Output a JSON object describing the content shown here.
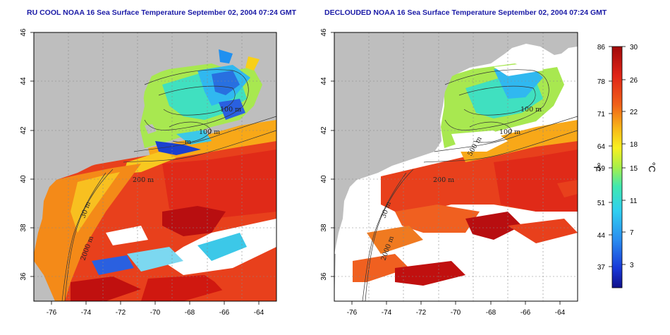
{
  "titles": {
    "left": "RU COOL NOAA 16 Sea Surface Temperature September 02, 2004 07:24 GMT",
    "right": "DECLOUDED NOAA 16 Sea Surface Temperature September 02, 2004 07:24 GMT"
  },
  "map": {
    "lon_ticks": [
      "-76",
      "-74",
      "-72",
      "-70",
      "-68",
      "-66",
      "-64"
    ],
    "lat_ticks": [
      "46",
      "44",
      "42",
      "40",
      "38",
      "36"
    ],
    "lon_range": [
      -77,
      -63
    ],
    "lat_range": [
      35,
      46
    ],
    "isobath_labels_left": [
      "100 m",
      "100 m",
      "m",
      "200 m",
      "30 m",
      "2000 m"
    ],
    "isobath_labels_right": [
      "100 m",
      "100 m",
      "500 m",
      "200 m",
      "30 m",
      "2000 m"
    ]
  },
  "colorbar": {
    "fahrenheit_ticks": [
      "86",
      "78",
      "71",
      "64",
      "59",
      "51",
      "44",
      "37"
    ],
    "celsius_ticks": [
      "30",
      "26",
      "22",
      "18",
      "15",
      "11",
      "7",
      "3"
    ],
    "fahrenheit_unit": "°F",
    "celsius_unit": "°C"
  },
  "colors": {
    "land": "#bebebe",
    "cloud": "#ffffff",
    "title": "#1a1aa6",
    "warm": "#e8281c",
    "hot": "#c0100f",
    "cool": "#3cc8e8",
    "cold": "#2050d8"
  }
}
